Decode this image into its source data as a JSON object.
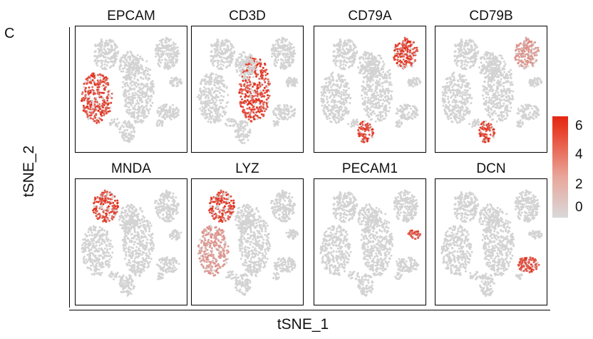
{
  "panel_label": "C",
  "xlabel": "tSNE_1",
  "ylabel": "tSNE_2",
  "legend": {
    "ticks": [
      "6",
      "4",
      "2",
      "0"
    ],
    "low_color": "#d9d9d9",
    "high_color": "#e32612"
  },
  "chart_data": {
    "type": "scatter",
    "x_label": "tSNE_1",
    "y_label": "tSNE_2",
    "color_scale": {
      "min": 0,
      "max": 6.5,
      "low": "#d9d9d9",
      "high": "#e32612",
      "ticks": [
        0,
        2,
        4,
        6
      ]
    },
    "facets": [
      {
        "gene": "EPCAM",
        "high_clusters": [
          "left-mid"
        ]
      },
      {
        "gene": "CD3D",
        "high_clusters": [
          "center"
        ]
      },
      {
        "gene": "CD79A",
        "high_clusters": [
          "top-right",
          "bottom-center"
        ]
      },
      {
        "gene": "CD79B",
        "high_clusters": [
          "top-right-faint",
          "bottom-center"
        ]
      },
      {
        "gene": "MNDA",
        "high_clusters": [
          "top-left"
        ]
      },
      {
        "gene": "LYZ",
        "high_clusters": [
          "top-left",
          "left-mid-faint"
        ]
      },
      {
        "gene": "PECAM1",
        "high_clusters": [
          "right-small"
        ]
      },
      {
        "gene": "DCN",
        "high_clusters": [
          "right-mid"
        ]
      }
    ]
  }
}
